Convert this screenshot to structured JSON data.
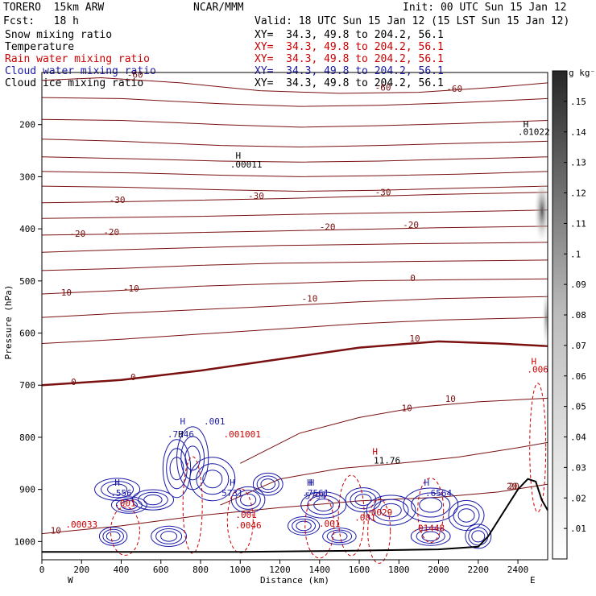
{
  "header": {
    "model": "TORERO  15km ARW",
    "center": "NCAR/MMM",
    "init": "Init: 00 UTC Sun 15 Jan 12",
    "fcst": "Fcst:   18 h",
    "valid": "Valid: 18 UTC Sun 15 Jan 12 (15 LST Sun 15 Jan 12)"
  },
  "legend": [
    {
      "label": "Snow mixing ratio",
      "xy": "XY=  34.3, 49.8 to 204.2, 56.1",
      "color": "#000000"
    },
    {
      "label": "Temperature",
      "xy": "XY=  34.3, 49.8 to 204.2, 56.1",
      "color": "#cc0000"
    },
    {
      "label": "Rain water mixing ratio",
      "xy": "XY=  34.3, 49.8 to 204.2, 56.1",
      "color": "#cc0000"
    },
    {
      "label": "Cloud water mixing ratio",
      "xy": "XY=  34.3, 49.8 to 204.2, 56.1",
      "color": "#1a1aa8"
    },
    {
      "label": "Cloud ice mixing ratio",
      "xy": "XY=  34.3, 49.8 to 204.2, 56.1",
      "color": "#000000"
    }
  ],
  "chart_data": {
    "type": "contour-cross-section",
    "xlabel": "Distance (km)",
    "ylabel": "Pressure (hPa)",
    "x_ticks": [
      0,
      200,
      400,
      600,
      800,
      1000,
      1200,
      1400,
      1600,
      1800,
      2000,
      2200,
      2400
    ],
    "y_ticks": [
      200,
      300,
      400,
      500,
      600,
      700,
      800,
      900,
      1000
    ],
    "xlim": [
      0,
      2550
    ],
    "ylim": [
      1035,
      100
    ],
    "west_label": "W",
    "east_label": "E",
    "colorbar": {
      "unit": "g kg⁻¹",
      "ticks": [
        ".01",
        ".02",
        ".03",
        ".04",
        ".05",
        ".06",
        ".07",
        ".08",
        ".09",
        ".1",
        ".11",
        ".12",
        ".13",
        ".14",
        ".15"
      ]
    },
    "temperature_levels": [
      {
        "label": "-60",
        "points": [
          [
            0,
            115
          ],
          [
            300,
            110
          ],
          [
            700,
            120
          ],
          [
            1100,
            135
          ],
          [
            1500,
            140
          ],
          [
            1900,
            138
          ],
          [
            2300,
            128
          ],
          [
            2550,
            120
          ]
        ]
      },
      {
        "label": "",
        "points": [
          [
            0,
            148
          ],
          [
            400,
            150
          ],
          [
            900,
            160
          ],
          [
            1300,
            165
          ],
          [
            1700,
            163
          ],
          [
            2100,
            158
          ],
          [
            2550,
            150
          ]
        ]
      },
      {
        "label": "",
        "points": [
          [
            0,
            190
          ],
          [
            400,
            192
          ],
          [
            900,
            200
          ],
          [
            1300,
            205
          ],
          [
            1700,
            202
          ],
          [
            2100,
            198
          ],
          [
            2550,
            192
          ]
        ]
      },
      {
        "label": "",
        "points": [
          [
            0,
            228
          ],
          [
            400,
            232
          ],
          [
            900,
            240
          ],
          [
            1300,
            243
          ],
          [
            1700,
            240
          ],
          [
            2100,
            236
          ],
          [
            2550,
            232
          ]
        ]
      },
      {
        "label": "",
        "points": [
          [
            0,
            262
          ],
          [
            500,
            266
          ],
          [
            900,
            270
          ],
          [
            1300,
            272
          ],
          [
            1700,
            270
          ],
          [
            2100,
            266
          ],
          [
            2550,
            262
          ]
        ]
      },
      {
        "label": "",
        "points": [
          [
            0,
            290
          ],
          [
            500,
            293
          ],
          [
            900,
            297
          ],
          [
            1300,
            300
          ],
          [
            1700,
            298
          ],
          [
            2100,
            295
          ],
          [
            2550,
            290
          ]
        ]
      },
      {
        "label": "",
        "points": [
          [
            0,
            318
          ],
          [
            400,
            320
          ],
          [
            900,
            325
          ],
          [
            1300,
            328
          ],
          [
            1700,
            326
          ],
          [
            2100,
            322
          ],
          [
            2550,
            318
          ]
        ]
      },
      {
        "label": "-30",
        "points": [
          [
            0,
            350
          ],
          [
            400,
            348
          ],
          [
            800,
            345
          ],
          [
            1200,
            342
          ],
          [
            1600,
            338
          ],
          [
            2000,
            334
          ],
          [
            2550,
            330
          ]
        ]
      },
      {
        "label": "",
        "points": [
          [
            0,
            380
          ],
          [
            400,
            378
          ],
          [
            800,
            376
          ],
          [
            1200,
            373
          ],
          [
            1600,
            370
          ],
          [
            2000,
            368
          ],
          [
            2550,
            364
          ]
        ]
      },
      {
        "label": "-20",
        "points": [
          [
            0,
            412
          ],
          [
            400,
            410
          ],
          [
            800,
            407
          ],
          [
            1200,
            404
          ],
          [
            1600,
            401
          ],
          [
            2000,
            398
          ],
          [
            2550,
            395
          ]
        ]
      },
      {
        "label": "-20",
        "points": [
          [
            0,
            445
          ],
          [
            400,
            440
          ],
          [
            800,
            436
          ],
          [
            1200,
            432
          ],
          [
            1600,
            430
          ],
          [
            2000,
            428
          ],
          [
            2550,
            426
          ]
        ]
      },
      {
        "label": "",
        "points": [
          [
            0,
            480
          ],
          [
            400,
            476
          ],
          [
            800,
            470
          ],
          [
            1200,
            466
          ],
          [
            1600,
            464
          ],
          [
            2000,
            462
          ],
          [
            2550,
            460
          ]
        ]
      },
      {
        "label": "-10",
        "points": [
          [
            0,
            525
          ],
          [
            400,
            518
          ],
          [
            800,
            510
          ],
          [
            1200,
            505
          ],
          [
            1600,
            500
          ],
          [
            2000,
            498
          ],
          [
            2550,
            496
          ]
        ]
      },
      {
        "label": "-10",
        "points": [
          [
            0,
            570
          ],
          [
            400,
            562
          ],
          [
            800,
            555
          ],
          [
            1200,
            548
          ],
          [
            1600,
            540
          ],
          [
            2000,
            534
          ],
          [
            2550,
            530
          ]
        ]
      },
      {
        "label": "",
        "points": [
          [
            0,
            620
          ],
          [
            400,
            612
          ],
          [
            800,
            602
          ],
          [
            1200,
            592
          ],
          [
            1600,
            582
          ],
          [
            2000,
            575
          ],
          [
            2550,
            570
          ]
        ]
      },
      {
        "label": "0",
        "points": [
          [
            0,
            700
          ],
          [
            400,
            690
          ],
          [
            800,
            672
          ],
          [
            1200,
            650
          ],
          [
            1600,
            628
          ],
          [
            2000,
            616
          ],
          [
            2300,
            620
          ],
          [
            2550,
            625
          ]
        ]
      },
      {
        "label": "10",
        "points": [
          [
            1000,
            850
          ],
          [
            1300,
            792
          ],
          [
            1600,
            762
          ],
          [
            1900,
            742
          ],
          [
            2200,
            732
          ],
          [
            2550,
            725
          ]
        ]
      },
      {
        "label": "",
        "points": [
          [
            900,
            930
          ],
          [
            1200,
            880
          ],
          [
            1500,
            860
          ],
          [
            1800,
            850
          ],
          [
            2100,
            838
          ],
          [
            2400,
            820
          ],
          [
            2550,
            810
          ]
        ]
      },
      {
        "label": "10",
        "points": [
          [
            0,
            985
          ],
          [
            400,
            970
          ],
          [
            800,
            950
          ],
          [
            1200,
            935
          ],
          [
            1600,
            922
          ],
          [
            2000,
            915
          ],
          [
            2300,
            905
          ],
          [
            2550,
            890
          ]
        ]
      }
    ],
    "temperature_labels": [
      "-60",
      "-60",
      "-60",
      "-30",
      "-30",
      "-30",
      "-20",
      "-20",
      "-20",
      "-20",
      "-10",
      "-10",
      "-10",
      "0",
      "0",
      "0",
      "10",
      "10",
      "10",
      "20"
    ],
    "terrain_km": [
      [
        0,
        1020
      ],
      [
        500,
        1020
      ],
      [
        1000,
        1020
      ],
      [
        1500,
        1018
      ],
      [
        2000,
        1015
      ],
      [
        2200,
        1010
      ],
      [
        2250,
        990
      ],
      [
        2300,
        960
      ],
      [
        2350,
        930
      ],
      [
        2400,
        900
      ],
      [
        2450,
        880
      ],
      [
        2490,
        885
      ],
      [
        2520,
        920
      ],
      [
        2550,
        940
      ]
    ],
    "cloud_labels": [
      "H",
      ".001",
      "H",
      ".7346",
      ".001001",
      "H",
      ".556",
      "H",
      "5731",
      "H",
      ".7561",
      "H",
      "5794",
      "H",
      ".6564",
      ".001",
      ".001",
      ".001",
      ".0046",
      "10",
      "20",
      "H",
      "11.76",
      ".00033",
      "H",
      ".00011",
      "H",
      ".01022",
      "H",
      ".006",
      ".01448",
      ".081",
      ".0029"
    ]
  }
}
